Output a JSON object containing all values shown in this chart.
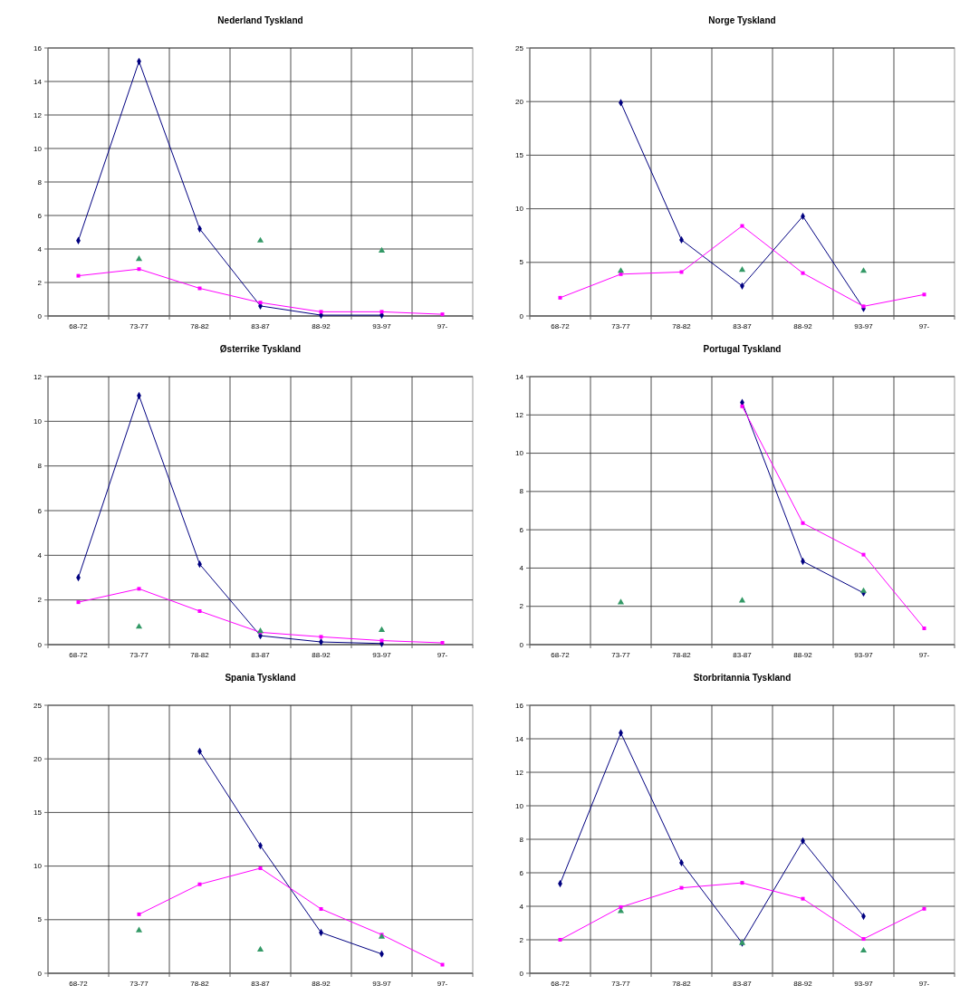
{
  "chart_data": [
    {
      "type": "line",
      "title": "Nederland Tyskland",
      "categories": [
        "68-72",
        "73-77",
        "78-82",
        "83-87",
        "88-92",
        "93-97",
        "97-"
      ],
      "ylim": [
        0,
        16
      ],
      "yticks": [
        0,
        2,
        4,
        6,
        8,
        10,
        12,
        14,
        16
      ],
      "grid": true,
      "series": [
        {
          "color": "#000080",
          "marker": "diamond",
          "values": [
            4.5,
            15.2,
            5.2,
            0.6,
            0.05,
            0.05,
            null
          ]
        },
        {
          "color": "#ff00ff",
          "marker": "square",
          "values": [
            2.4,
            2.8,
            1.65,
            0.8,
            0.25,
            0.25,
            0.1
          ]
        },
        {
          "type": "scatter",
          "color": "#339966",
          "marker": "triangle",
          "values": [
            null,
            3.4,
            null,
            4.5,
            null,
            3.9,
            null
          ]
        }
      ]
    },
    {
      "type": "line",
      "title": "Norge Tyskland",
      "categories": [
        "68-72",
        "73-77",
        "78-82",
        "83-87",
        "88-92",
        "93-97",
        "97-"
      ],
      "ylim": [
        0,
        25
      ],
      "yticks": [
        0,
        5,
        10,
        15,
        20,
        25
      ],
      "grid": true,
      "series": [
        {
          "color": "#000080",
          "marker": "diamond",
          "values": [
            null,
            19.9,
            7.1,
            2.8,
            9.3,
            0.7,
            null
          ]
        },
        {
          "color": "#ff00ff",
          "marker": "square",
          "values": [
            1.7,
            3.9,
            4.1,
            8.4,
            4.0,
            0.9,
            2.0
          ]
        },
        {
          "type": "scatter",
          "color": "#339966",
          "marker": "triangle",
          "values": [
            null,
            4.2,
            null,
            4.3,
            null,
            4.2,
            null
          ]
        }
      ]
    },
    {
      "type": "line",
      "title": "Østerrike Tyskland",
      "categories": [
        "68-72",
        "73-77",
        "78-82",
        "83-87",
        "88-92",
        "93-97",
        "97-"
      ],
      "ylim": [
        0,
        12
      ],
      "yticks": [
        0,
        2,
        4,
        6,
        8,
        10,
        12
      ],
      "grid": true,
      "series": [
        {
          "color": "#000080",
          "marker": "diamond",
          "values": [
            3.0,
            11.15,
            3.6,
            0.4,
            0.12,
            0.05,
            null
          ]
        },
        {
          "color": "#ff00ff",
          "marker": "square",
          "values": [
            1.9,
            2.5,
            1.5,
            0.55,
            0.35,
            0.18,
            0.08
          ]
        },
        {
          "type": "scatter",
          "color": "#339966",
          "marker": "triangle",
          "values": [
            null,
            0.8,
            null,
            0.6,
            null,
            0.65,
            null
          ]
        }
      ]
    },
    {
      "type": "line",
      "title": "Portugal Tyskland",
      "categories": [
        "68-72",
        "73-77",
        "78-82",
        "83-87",
        "88-92",
        "93-97",
        "97-"
      ],
      "ylim": [
        0,
        14
      ],
      "yticks": [
        0,
        2,
        4,
        6,
        8,
        10,
        12,
        14
      ],
      "grid": true,
      "series": [
        {
          "color": "#000080",
          "marker": "diamond",
          "values": [
            null,
            null,
            null,
            12.65,
            4.35,
            2.7,
            null
          ]
        },
        {
          "color": "#ff00ff",
          "marker": "square",
          "values": [
            null,
            null,
            null,
            12.45,
            6.35,
            4.7,
            0.85
          ]
        },
        {
          "type": "scatter",
          "color": "#339966",
          "marker": "triangle",
          "values": [
            null,
            2.2,
            null,
            2.3,
            null,
            2.8,
            null
          ]
        }
      ]
    },
    {
      "type": "line",
      "title": "Spania Tyskland",
      "categories": [
        "68-72",
        "73-77",
        "78-82",
        "83-87",
        "88-92",
        "93-97",
        "97-"
      ],
      "ylim": [
        0,
        25
      ],
      "yticks": [
        0,
        5,
        10,
        15,
        20,
        25
      ],
      "grid": true,
      "series": [
        {
          "color": "#000080",
          "marker": "diamond",
          "values": [
            null,
            null,
            20.7,
            11.9,
            3.8,
            1.8,
            null
          ]
        },
        {
          "color": "#ff00ff",
          "marker": "square",
          "values": [
            null,
            5.5,
            8.3,
            9.8,
            6.0,
            3.6,
            0.8
          ]
        },
        {
          "type": "scatter",
          "color": "#339966",
          "marker": "triangle",
          "values": [
            null,
            4.0,
            null,
            2.2,
            null,
            3.4,
            null
          ]
        }
      ]
    },
    {
      "type": "line",
      "title": "Storbritannia Tyskland",
      "categories": [
        "68-72",
        "73-77",
        "78-82",
        "83-87",
        "88-92",
        "93-97",
        "97-"
      ],
      "ylim": [
        0,
        16
      ],
      "yticks": [
        0,
        2,
        4,
        6,
        8,
        10,
        12,
        14,
        16
      ],
      "grid": true,
      "series": [
        {
          "color": "#000080",
          "marker": "diamond",
          "values": [
            5.35,
            14.35,
            6.6,
            1.8,
            7.9,
            3.4,
            null
          ]
        },
        {
          "color": "#ff00ff",
          "marker": "square",
          "values": [
            2.0,
            3.95,
            5.1,
            5.4,
            4.45,
            2.05,
            3.85
          ]
        },
        {
          "type": "scatter",
          "color": "#339966",
          "marker": "triangle",
          "values": [
            null,
            3.7,
            null,
            1.8,
            null,
            1.35,
            null
          ]
        }
      ]
    }
  ]
}
